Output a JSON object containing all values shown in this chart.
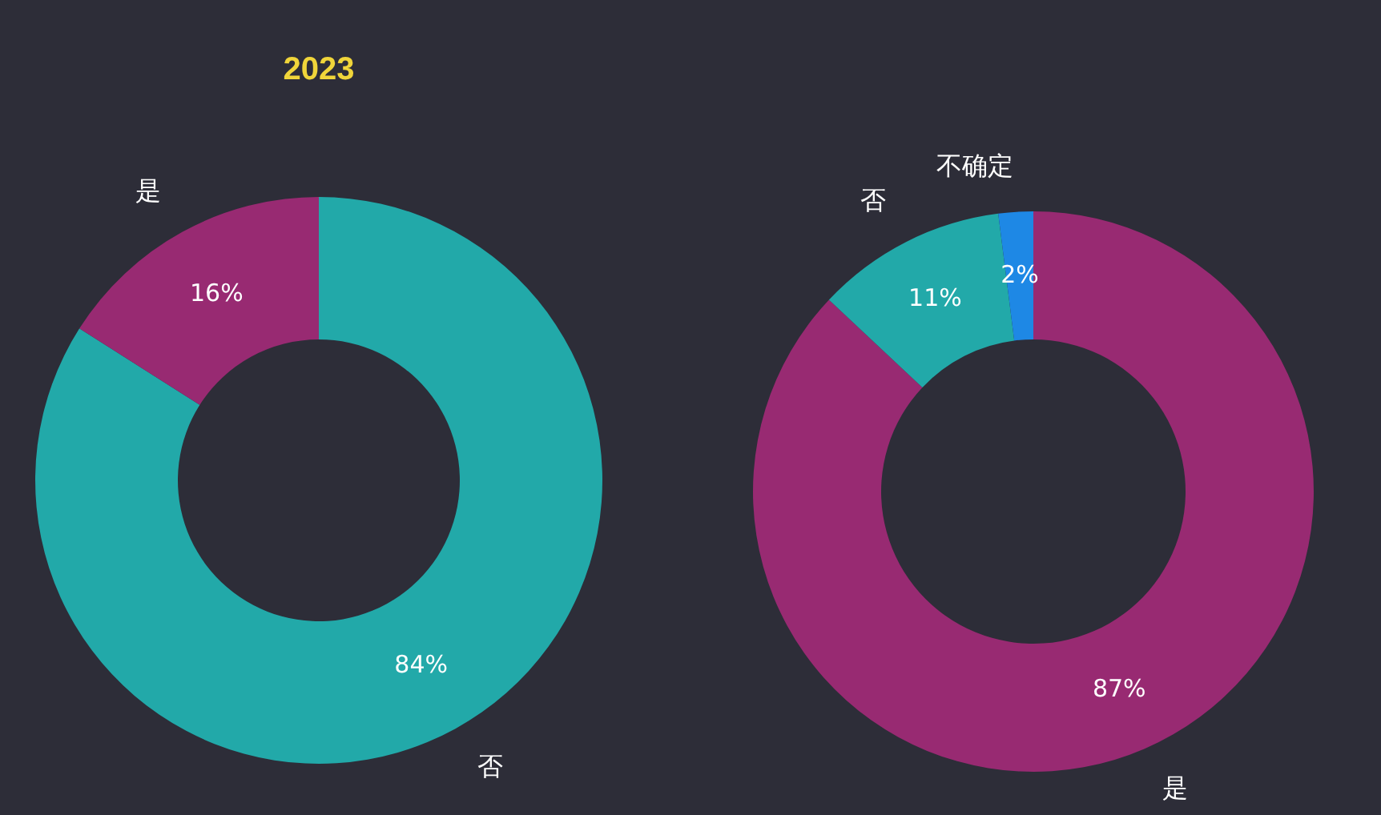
{
  "chart_data": [
    {
      "type": "donut",
      "title": "2023",
      "categories": [
        "否",
        "是"
      ],
      "values": [
        84,
        16
      ],
      "colors": [
        "#22a9a9",
        "#982a72"
      ],
      "value_labels": [
        "84%",
        "16%"
      ]
    },
    {
      "type": "donut",
      "categories": [
        "是",
        "否",
        "不确定"
      ],
      "values": [
        87,
        11,
        2
      ],
      "colors": [
        "#982a72",
        "#22a9a9",
        "#1e88e5"
      ],
      "value_labels": [
        "87%",
        "11%",
        "2%"
      ]
    }
  ]
}
